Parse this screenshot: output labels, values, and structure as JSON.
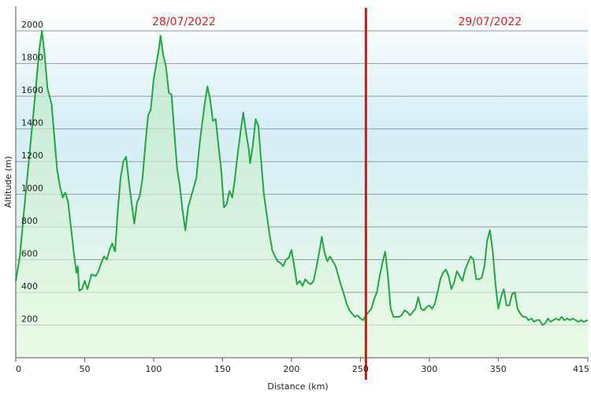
{
  "chart_data": {
    "type": "area",
    "title": "",
    "xlabel": "Distance  (km)",
    "ylabel": "Altitude (m)",
    "xlim": [
      0,
      415
    ],
    "ylim": [
      0,
      2150
    ],
    "grid": true,
    "x_ticks": [
      {
        "value": 0,
        "label": "0"
      },
      {
        "value": 50,
        "label": "50"
      },
      {
        "value": 100,
        "label": "100"
      },
      {
        "value": 150,
        "label": "150"
      },
      {
        "value": 200,
        "label": "200"
      },
      {
        "value": 250,
        "label": "250"
      },
      {
        "value": 300,
        "label": "300"
      },
      {
        "value": 350,
        "label": "350"
      },
      {
        "value": 415,
        "label": "415"
      }
    ],
    "y_ticks": [
      {
        "value": 200,
        "label": "200"
      },
      {
        "value": 400,
        "label": "400"
      },
      {
        "value": 600,
        "label": "600"
      },
      {
        "value": 800,
        "label": "800"
      },
      {
        "value": 1000,
        "label": "1000"
      },
      {
        "value": 1200,
        "label": "1200"
      },
      {
        "value": 1400,
        "label": "1400"
      },
      {
        "value": 1600,
        "label": "1600"
      },
      {
        "value": 1800,
        "label": "1800"
      },
      {
        "value": 2000,
        "label": "2000"
      }
    ],
    "day_marker": {
      "x": 254,
      "color": "#dd1111"
    },
    "day_labels": [
      {
        "label": "28/07/2022",
        "x": 122
      },
      {
        "label": "29/07/2022",
        "x": 344
      }
    ],
    "series": [
      {
        "color": "#22a645",
        "points": [
          [
            0,
            470
          ],
          [
            3,
            620
          ],
          [
            6,
            900
          ],
          [
            10,
            1250
          ],
          [
            14,
            1600
          ],
          [
            17,
            1880
          ],
          [
            19,
            2000
          ],
          [
            21,
            1850
          ],
          [
            23,
            1650
          ],
          [
            26,
            1550
          ],
          [
            28,
            1350
          ],
          [
            30,
            1150
          ],
          [
            32,
            1050
          ],
          [
            34,
            980
          ],
          [
            36,
            1010
          ],
          [
            38,
            950
          ],
          [
            40,
            800
          ],
          [
            42,
            650
          ],
          [
            44,
            520
          ],
          [
            45,
            560
          ],
          [
            46,
            410
          ],
          [
            48,
            420
          ],
          [
            50,
            470
          ],
          [
            52,
            420
          ],
          [
            55,
            510
          ],
          [
            58,
            500
          ],
          [
            60,
            530
          ],
          [
            62,
            580
          ],
          [
            64,
            620
          ],
          [
            66,
            600
          ],
          [
            68,
            660
          ],
          [
            70,
            700
          ],
          [
            72,
            650
          ],
          [
            74,
            900
          ],
          [
            76,
            1100
          ],
          [
            78,
            1200
          ],
          [
            80,
            1230
          ],
          [
            82,
            1080
          ],
          [
            84,
            950
          ],
          [
            86,
            820
          ],
          [
            88,
            950
          ],
          [
            90,
            990
          ],
          [
            92,
            1100
          ],
          [
            94,
            1300
          ],
          [
            96,
            1480
          ],
          [
            98,
            1520
          ],
          [
            100,
            1700
          ],
          [
            102,
            1800
          ],
          [
            104,
            1900
          ],
          [
            105,
            1970
          ],
          [
            107,
            1850
          ],
          [
            109,
            1780
          ],
          [
            111,
            1620
          ],
          [
            113,
            1610
          ],
          [
            115,
            1380
          ],
          [
            117,
            1160
          ],
          [
            119,
            1050
          ],
          [
            121,
            900
          ],
          [
            123,
            780
          ],
          [
            125,
            920
          ],
          [
            127,
            980
          ],
          [
            129,
            1040
          ],
          [
            131,
            1100
          ],
          [
            133,
            1280
          ],
          [
            135,
            1420
          ],
          [
            137,
            1550
          ],
          [
            139,
            1660
          ],
          [
            141,
            1580
          ],
          [
            143,
            1450
          ],
          [
            145,
            1460
          ],
          [
            147,
            1300
          ],
          [
            149,
            1150
          ],
          [
            151,
            920
          ],
          [
            153,
            940
          ],
          [
            155,
            1020
          ],
          [
            157,
            980
          ],
          [
            159,
            1100
          ],
          [
            161,
            1250
          ],
          [
            163,
            1380
          ],
          [
            165,
            1500
          ],
          [
            167,
            1380
          ],
          [
            169,
            1280
          ],
          [
            170,
            1190
          ],
          [
            172,
            1300
          ],
          [
            174,
            1460
          ],
          [
            176,
            1420
          ],
          [
            178,
            1200
          ],
          [
            180,
            1000
          ],
          [
            182,
            880
          ],
          [
            184,
            760
          ],
          [
            186,
            660
          ],
          [
            188,
            620
          ],
          [
            190,
            590
          ],
          [
            192,
            580
          ],
          [
            194,
            560
          ],
          [
            196,
            600
          ],
          [
            198,
            610
          ],
          [
            200,
            660
          ],
          [
            202,
            560
          ],
          [
            204,
            450
          ],
          [
            206,
            470
          ],
          [
            208,
            440
          ],
          [
            210,
            480
          ],
          [
            212,
            460
          ],
          [
            214,
            450
          ],
          [
            216,
            470
          ],
          [
            218,
            550
          ],
          [
            220,
            640
          ],
          [
            222,
            740
          ],
          [
            224,
            640
          ],
          [
            226,
            590
          ],
          [
            228,
            620
          ],
          [
            230,
            590
          ],
          [
            232,
            560
          ],
          [
            234,
            500
          ],
          [
            236,
            440
          ],
          [
            238,
            390
          ],
          [
            240,
            330
          ],
          [
            242,
            290
          ],
          [
            244,
            270
          ],
          [
            246,
            250
          ],
          [
            248,
            260
          ],
          [
            250,
            240
          ],
          [
            252,
            230
          ],
          [
            254,
            260
          ],
          [
            256,
            280
          ],
          [
            258,
            300
          ],
          [
            260,
            360
          ],
          [
            262,
            400
          ],
          [
            264,
            500
          ],
          [
            266,
            580
          ],
          [
            268,
            650
          ],
          [
            270,
            500
          ],
          [
            272,
            300
          ],
          [
            274,
            250
          ],
          [
            276,
            250
          ],
          [
            278,
            250
          ],
          [
            280,
            260
          ],
          [
            282,
            290
          ],
          [
            284,
            280
          ],
          [
            286,
            260
          ],
          [
            288,
            280
          ],
          [
            290,
            300
          ],
          [
            292,
            370
          ],
          [
            294,
            300
          ],
          [
            296,
            290
          ],
          [
            298,
            310
          ],
          [
            300,
            320
          ],
          [
            302,
            300
          ],
          [
            304,
            330
          ],
          [
            306,
            400
          ],
          [
            308,
            480
          ],
          [
            310,
            520
          ],
          [
            312,
            540
          ],
          [
            314,
            500
          ],
          [
            316,
            420
          ],
          [
            318,
            460
          ],
          [
            320,
            530
          ],
          [
            322,
            500
          ],
          [
            324,
            470
          ],
          [
            326,
            540
          ],
          [
            328,
            580
          ],
          [
            330,
            620
          ],
          [
            332,
            600
          ],
          [
            334,
            480
          ],
          [
            336,
            480
          ],
          [
            338,
            490
          ],
          [
            340,
            560
          ],
          [
            342,
            720
          ],
          [
            344,
            780
          ],
          [
            346,
            650
          ],
          [
            348,
            450
          ],
          [
            350,
            300
          ],
          [
            352,
            370
          ],
          [
            354,
            420
          ],
          [
            356,
            320
          ],
          [
            358,
            320
          ],
          [
            360,
            390
          ],
          [
            362,
            400
          ],
          [
            364,
            300
          ],
          [
            366,
            270
          ],
          [
            368,
            250
          ],
          [
            370,
            250
          ],
          [
            372,
            230
          ],
          [
            374,
            240
          ],
          [
            376,
            220
          ],
          [
            378,
            230
          ],
          [
            380,
            230
          ],
          [
            382,
            200
          ],
          [
            384,
            210
          ],
          [
            386,
            240
          ],
          [
            388,
            220
          ],
          [
            390,
            230
          ],
          [
            392,
            240
          ],
          [
            394,
            230
          ],
          [
            396,
            250
          ],
          [
            398,
            230
          ],
          [
            400,
            240
          ],
          [
            402,
            230
          ],
          [
            404,
            240
          ],
          [
            406,
            230
          ],
          [
            408,
            220
          ],
          [
            410,
            230
          ],
          [
            412,
            220
          ],
          [
            415,
            230
          ]
        ]
      }
    ]
  }
}
